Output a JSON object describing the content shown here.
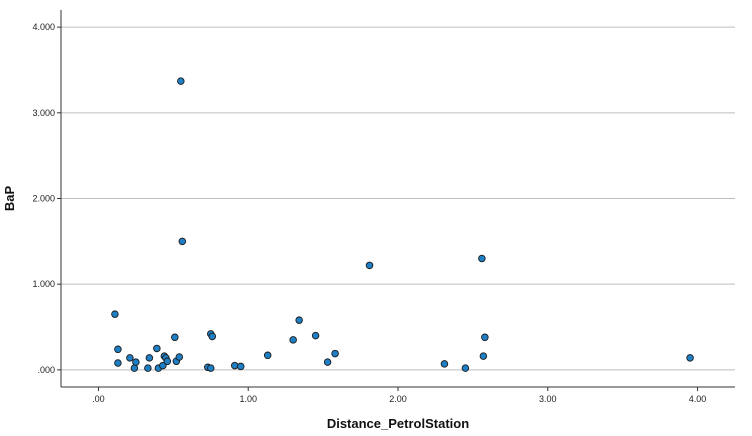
{
  "chart_data": {
    "type": "scatter",
    "title": "",
    "xlabel": "Distance_PetrolStation",
    "ylabel": "BaP",
    "xlim": [
      -0.25,
      4.25
    ],
    "ylim": [
      -0.2,
      4.2
    ],
    "x_ticks": [
      0,
      1,
      2,
      3,
      4
    ],
    "x_tick_labels": [
      ".00",
      "1.00",
      "2.00",
      "3.00",
      "4.00"
    ],
    "y_ticks": [
      0,
      1,
      2,
      3,
      4
    ],
    "y_tick_labels": [
      ".000",
      "1.000",
      "2.000",
      "3.000",
      "4.000"
    ],
    "grid": "horizontal",
    "legend": "none",
    "point_color": "#1f7fc4",
    "point_edge_color": "#1a1a1a",
    "series": [
      {
        "points": [
          {
            "x": 0.11,
            "y": 0.65
          },
          {
            "x": 0.13,
            "y": 0.24
          },
          {
            "x": 0.13,
            "y": 0.08
          },
          {
            "x": 0.21,
            "y": 0.14
          },
          {
            "x": 0.24,
            "y": 0.02
          },
          {
            "x": 0.25,
            "y": 0.09
          },
          {
            "x": 0.33,
            "y": 0.02
          },
          {
            "x": 0.34,
            "y": 0.14
          },
          {
            "x": 0.39,
            "y": 0.25
          },
          {
            "x": 0.4,
            "y": 0.02
          },
          {
            "x": 0.43,
            "y": 0.05
          },
          {
            "x": 0.44,
            "y": 0.16
          },
          {
            "x": 0.45,
            "y": 0.14
          },
          {
            "x": 0.46,
            "y": 0.1
          },
          {
            "x": 0.51,
            "y": 0.38
          },
          {
            "x": 0.52,
            "y": 0.1
          },
          {
            "x": 0.54,
            "y": 0.15
          },
          {
            "x": 0.55,
            "y": 3.37
          },
          {
            "x": 0.56,
            "y": 1.5
          },
          {
            "x": 0.73,
            "y": 0.03
          },
          {
            "x": 0.75,
            "y": 0.02
          },
          {
            "x": 0.75,
            "y": 0.42
          },
          {
            "x": 0.76,
            "y": 0.39
          },
          {
            "x": 0.91,
            "y": 0.05
          },
          {
            "x": 0.95,
            "y": 0.04
          },
          {
            "x": 1.13,
            "y": 0.17
          },
          {
            "x": 1.3,
            "y": 0.35
          },
          {
            "x": 1.34,
            "y": 0.58
          },
          {
            "x": 1.45,
            "y": 0.4
          },
          {
            "x": 1.53,
            "y": 0.09
          },
          {
            "x": 1.58,
            "y": 0.19
          },
          {
            "x": 1.81,
            "y": 1.22
          },
          {
            "x": 2.31,
            "y": 0.07
          },
          {
            "x": 2.45,
            "y": 0.02
          },
          {
            "x": 2.56,
            "y": 1.3
          },
          {
            "x": 2.57,
            "y": 0.16
          },
          {
            "x": 2.58,
            "y": 0.38
          },
          {
            "x": 3.95,
            "y": 0.14
          }
        ]
      }
    ]
  }
}
